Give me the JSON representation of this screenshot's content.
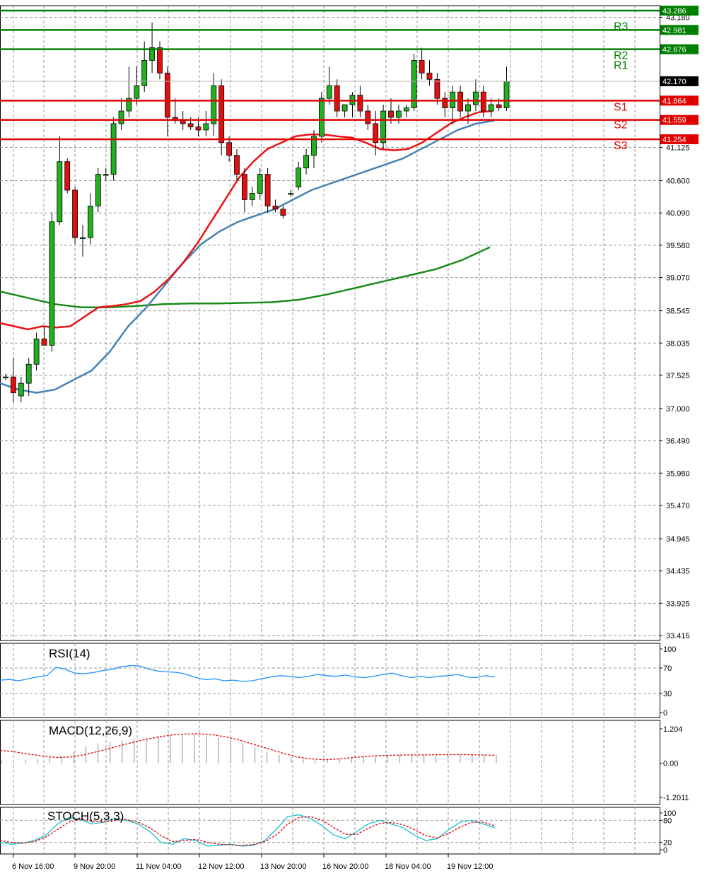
{
  "chart_data": [
    {
      "type": "candlestick",
      "panel": "price",
      "ylim": [
        33.415,
        43.286
      ],
      "y_ticks": [
        "43.180",
        "41.125",
        "40.600",
        "40.090",
        "39.580",
        "39.070",
        "38.545",
        "38.035",
        "37.525",
        "37.000",
        "36.490",
        "35.980",
        "35.470",
        "34.945",
        "34.435",
        "33.925",
        "33.415"
      ],
      "x_ticks": [
        "6 Nov 16:00",
        "9 Nov 20:00",
        "11 Nov 04:00",
        "12 Nov 12:00",
        "13 Nov 20:00",
        "16 Nov 20:00",
        "18 Nov 04:00",
        "19 Nov 12:00"
      ],
      "current_price": "42.170",
      "levels": [
        {
          "name": "R3",
          "value": "42.981",
          "color": "#008000"
        },
        {
          "name": "R2",
          "value": "42.676",
          "color": "#008000"
        },
        {
          "name": "R1",
          "value": "42.676",
          "color": "#008000"
        },
        {
          "name": "",
          "value": "43.286",
          "color": "#008000"
        },
        {
          "name": "S1",
          "value": "41.864",
          "color": "#e00000"
        },
        {
          "name": "S2",
          "value": "41.559",
          "color": "#e00000"
        },
        {
          "name": "S3",
          "value": "41.254",
          "color": "#e00000"
        }
      ],
      "candles": [
        [
          37.5,
          37.55,
          37.45,
          37.5
        ],
        [
          37.5,
          37.8,
          37.1,
          37.25
        ],
        [
          37.2,
          37.5,
          37.1,
          37.4
        ],
        [
          37.4,
          37.8,
          37.2,
          37.7
        ],
        [
          37.7,
          38.2,
          37.6,
          38.1
        ],
        [
          38.1,
          38.3,
          38.0,
          38.0
        ],
        [
          38.0,
          40.1,
          37.9,
          39.95
        ],
        [
          39.95,
          41.3,
          39.9,
          40.9
        ],
        [
          40.9,
          40.95,
          40.4,
          40.45
        ],
        [
          40.45,
          40.5,
          39.6,
          39.7
        ],
        [
          39.7,
          39.9,
          39.4,
          39.7
        ],
        [
          39.7,
          40.4,
          39.6,
          40.2
        ],
        [
          40.2,
          40.8,
          40.1,
          40.7
        ],
        [
          40.7,
          40.8,
          40.6,
          40.7
        ],
        [
          40.7,
          41.6,
          40.6,
          41.5
        ],
        [
          41.5,
          41.9,
          41.4,
          41.7
        ],
        [
          41.7,
          42.4,
          41.6,
          41.9
        ],
        [
          41.9,
          42.4,
          41.8,
          42.1
        ],
        [
          42.1,
          42.8,
          42.0,
          42.5
        ],
        [
          42.5,
          43.1,
          42.3,
          42.7
        ],
        [
          42.7,
          42.8,
          42.2,
          42.3
        ],
        [
          42.3,
          42.4,
          41.3,
          41.6
        ],
        [
          41.6,
          41.9,
          41.5,
          41.55
        ],
        [
          41.55,
          41.7,
          41.4,
          41.5
        ],
        [
          41.5,
          41.6,
          41.4,
          41.45
        ],
        [
          41.45,
          41.6,
          41.3,
          41.4
        ],
        [
          41.4,
          41.7,
          41.3,
          41.5
        ],
        [
          41.5,
          42.3,
          41.3,
          42.1
        ],
        [
          42.1,
          42.2,
          41.0,
          41.2
        ],
        [
          41.2,
          41.3,
          40.9,
          41.0
        ],
        [
          41.0,
          41.1,
          40.6,
          40.7
        ],
        [
          40.7,
          40.8,
          40.1,
          40.3
        ],
        [
          40.3,
          40.5,
          40.2,
          40.4
        ],
        [
          40.4,
          40.8,
          40.3,
          40.7
        ],
        [
          40.7,
          40.8,
          40.1,
          40.2
        ],
        [
          40.2,
          40.3,
          40.1,
          40.15
        ],
        [
          40.15,
          40.2,
          40.0,
          40.05
        ],
        [
          40.4,
          40.45,
          40.35,
          40.4
        ],
        [
          40.5,
          40.9,
          40.45,
          40.8
        ],
        [
          40.8,
          41.1,
          40.7,
          41.0
        ],
        [
          41.0,
          41.4,
          40.8,
          41.3
        ],
        [
          41.3,
          42.0,
          41.2,
          41.9
        ],
        [
          41.9,
          42.4,
          41.8,
          42.1
        ],
        [
          42.1,
          42.2,
          41.6,
          41.7
        ],
        [
          41.7,
          41.8,
          41.6,
          41.8
        ],
        [
          41.8,
          42.0,
          41.6,
          41.95
        ],
        [
          41.95,
          42.1,
          41.6,
          41.7
        ],
        [
          41.7,
          41.8,
          41.4,
          41.5
        ],
        [
          41.5,
          41.7,
          41.0,
          41.2
        ],
        [
          41.2,
          41.8,
          41.1,
          41.7
        ],
        [
          41.7,
          41.9,
          41.5,
          41.6
        ],
        [
          41.6,
          41.8,
          41.5,
          41.7
        ],
        [
          41.7,
          41.8,
          41.6,
          41.75
        ],
        [
          41.75,
          42.6,
          41.7,
          42.5
        ],
        [
          42.5,
          42.7,
          42.2,
          42.3
        ],
        [
          42.3,
          42.5,
          42.1,
          42.2
        ],
        [
          42.2,
          42.3,
          41.8,
          41.9
        ],
        [
          41.9,
          42.0,
          41.6,
          41.75
        ],
        [
          41.75,
          42.1,
          41.5,
          42.0
        ],
        [
          42.0,
          42.1,
          41.6,
          41.7
        ],
        [
          41.7,
          41.9,
          41.5,
          41.8
        ],
        [
          41.8,
          42.2,
          41.7,
          42.0
        ],
        [
          42.0,
          42.1,
          41.6,
          41.7
        ],
        [
          41.7,
          41.9,
          41.6,
          41.8
        ],
        [
          41.8,
          41.9,
          41.7,
          41.75
        ],
        [
          41.75,
          42.4,
          41.7,
          42.17
        ]
      ],
      "ma_fast_color": "#ee1111",
      "ma_mid_color": "#4682b4",
      "ma_slow_color": "#1a8a1a",
      "ma_fast": [
        38.35,
        38.3,
        38.25,
        38.3,
        38.28,
        38.3,
        38.45,
        38.6,
        38.62,
        38.65,
        38.7,
        38.85,
        39.05,
        39.3,
        39.6,
        39.95,
        40.3,
        40.65,
        40.9,
        41.1,
        41.2,
        41.3,
        41.33,
        41.33,
        41.3,
        41.28,
        41.2,
        41.1,
        41.08,
        41.1,
        41.2,
        41.35,
        41.5,
        41.6,
        41.68,
        41.7
      ],
      "ma_mid": [
        37.4,
        37.3,
        37.25,
        37.3,
        37.45,
        37.6,
        37.9,
        38.3,
        38.6,
        38.95,
        39.3,
        39.6,
        39.8,
        39.95,
        40.05,
        40.15,
        40.3,
        40.45,
        40.55,
        40.65,
        40.75,
        40.85,
        40.95,
        41.1,
        41.25,
        41.4,
        41.5,
        41.55
      ],
      "ma_slow": [
        38.85,
        38.75,
        38.65,
        38.6,
        38.6,
        38.62,
        38.65,
        38.66,
        38.66,
        38.67,
        38.68,
        38.72,
        38.8,
        38.9,
        39.0,
        39.1,
        39.2,
        39.35,
        39.55
      ]
    },
    {
      "type": "line",
      "panel": "rsi",
      "title": "RSI(14)",
      "ylim": [
        0,
        100
      ],
      "y_ticks": [
        "100",
        "70",
        "30",
        "0"
      ],
      "color": "#1e90ff",
      "values": [
        51,
        52,
        50,
        53,
        56,
        58,
        71,
        68,
        62,
        61,
        63,
        66,
        68,
        72,
        74,
        73,
        68,
        65,
        64,
        63,
        60,
        55,
        52,
        53,
        50,
        51,
        49,
        50,
        53,
        56,
        58,
        57,
        55,
        57,
        60,
        58,
        57,
        59,
        56,
        55,
        57,
        60,
        62,
        58,
        55,
        57,
        55,
        57,
        58,
        60,
        56,
        55,
        58,
        56
      ]
    },
    {
      "type": "line",
      "panel": "macd",
      "title": "MACD(12,26,9)",
      "ylim": [
        -1.2011,
        1.204
      ],
      "y_ticks": [
        "1.204",
        "0.00",
        "-1.2011"
      ],
      "signal_color": "#e00000",
      "hist_color": "#b0b0b0",
      "histogram": [
        0.1,
        0.1,
        0.1,
        0.15,
        0.2,
        0.25,
        0.4,
        0.6,
        0.7,
        0.75,
        0.8,
        0.85,
        0.9,
        0.95,
        1.0,
        1.02,
        1.0,
        0.95,
        0.9,
        0.8,
        0.7,
        0.55,
        0.4,
        0.3,
        0.2,
        0.15,
        0.1,
        0.12,
        0.15,
        0.2,
        0.25,
        0.28,
        0.3,
        0.3,
        0.32,
        0.3,
        0.3,
        0.3,
        0.28,
        0.3,
        0.28,
        0.29
      ],
      "signal": [
        0.45,
        0.4,
        0.32,
        0.25,
        0.2,
        0.22,
        0.3,
        0.42,
        0.55,
        0.68,
        0.8,
        0.9,
        0.98,
        1.02,
        1.03,
        1.0,
        0.92,
        0.8,
        0.65,
        0.5,
        0.35,
        0.22,
        0.15,
        0.12,
        0.15,
        0.2,
        0.24,
        0.27,
        0.28,
        0.29,
        0.29,
        0.3,
        0.3,
        0.3,
        0.29,
        0.28
      ]
    },
    {
      "type": "line",
      "panel": "stoch",
      "title": "STOCH(5,3,3)",
      "ylim": [
        0,
        100
      ],
      "y_ticks": [
        "100",
        "80",
        "20",
        "0"
      ],
      "k_color": "#17becf",
      "d_color": "#e00000",
      "k": [
        20,
        15,
        18,
        25,
        40,
        70,
        88,
        82,
        70,
        75,
        85,
        80,
        70,
        50,
        20,
        15,
        30,
        25,
        10,
        12,
        15,
        10,
        12,
        25,
        55,
        90,
        95,
        85,
        65,
        40,
        30,
        50,
        70,
        80,
        70,
        60,
        40,
        25,
        30,
        55,
        75,
        80,
        70,
        60
      ],
      "d": [
        25,
        20,
        18,
        22,
        35,
        55,
        75,
        83,
        78,
        75,
        80,
        82,
        75,
        60,
        38,
        22,
        25,
        28,
        20,
        15,
        13,
        12,
        14,
        22,
        40,
        70,
        88,
        90,
        80,
        60,
        42,
        42,
        58,
        72,
        74,
        68,
        55,
        38,
        32,
        45,
        62,
        75,
        75,
        65
      ]
    }
  ]
}
